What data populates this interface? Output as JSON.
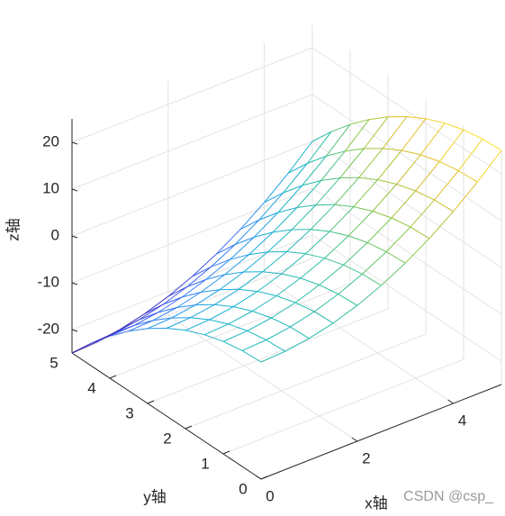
{
  "chart_data": {
    "type": "mesh",
    "xlabel": "x轴",
    "ylabel": "y轴",
    "zlabel": "z轴",
    "x": [
      0,
      0.5,
      1,
      1.5,
      2,
      2.5,
      3,
      3.5,
      4,
      4.5,
      5
    ],
    "y": [
      0,
      0.5,
      1,
      1.5,
      2,
      2.5,
      3,
      3.5,
      4,
      4.5,
      5
    ],
    "z": [
      [
        0,
        0.25,
        1,
        2.25,
        4,
        6.25,
        9,
        12.25,
        16,
        20.25,
        25
      ],
      [
        -0.25,
        0,
        0.75,
        2,
        3.75,
        6,
        8.75,
        12,
        15.75,
        20,
        24.75
      ],
      [
        -1,
        -0.75,
        0,
        1.25,
        3,
        5.25,
        8,
        11.25,
        15,
        19.25,
        24
      ],
      [
        -2.25,
        -2,
        -1.25,
        0,
        1.75,
        4,
        6.75,
        10,
        13.75,
        18,
        22.75
      ],
      [
        -4,
        -3.75,
        -3,
        -1.75,
        0,
        2.25,
        5,
        8.25,
        12,
        16.25,
        21
      ],
      [
        -6.25,
        -6,
        -5.25,
        -4,
        -2.25,
        0,
        2.75,
        6,
        9.75,
        14,
        18.75
      ],
      [
        -9,
        -8.75,
        -8,
        -6.75,
        -5,
        -2.75,
        0,
        3.25,
        7,
        11.25,
        16
      ],
      [
        -12.25,
        -12,
        -11.25,
        -10,
        -8.25,
        -6,
        -3.25,
        0,
        3.75,
        8,
        12.75
      ],
      [
        -16,
        -15.75,
        -15,
        -13.75,
        -12,
        -9.75,
        -7,
        -3.75,
        0,
        4.25,
        9
      ],
      [
        -20.25,
        -20,
        -19.25,
        -18,
        -16.25,
        -14,
        -11.25,
        -8,
        -4.25,
        0,
        4.75
      ],
      [
        -25,
        -24.75,
        -24,
        -22.75,
        -21,
        -18.75,
        -16,
        -12.75,
        -9,
        -4.75,
        0
      ]
    ],
    "xlim": [
      0,
      5
    ],
    "ylim": [
      0,
      5
    ],
    "zlim": [
      -25,
      25
    ],
    "xticks": [
      0,
      2,
      4
    ],
    "yticks": [
      0,
      1,
      2,
      3,
      4,
      5
    ],
    "zticks": [
      -20,
      -10,
      0,
      10,
      20
    ],
    "grid": true,
    "colormap": [
      "#3e26a8",
      "#4554f0",
      "#2d8bf5",
      "#17b1d3",
      "#2ec09f",
      "#8bc743",
      "#e4bc2c",
      "#f9e421"
    ],
    "watermark": "CSDN @csp_"
  }
}
